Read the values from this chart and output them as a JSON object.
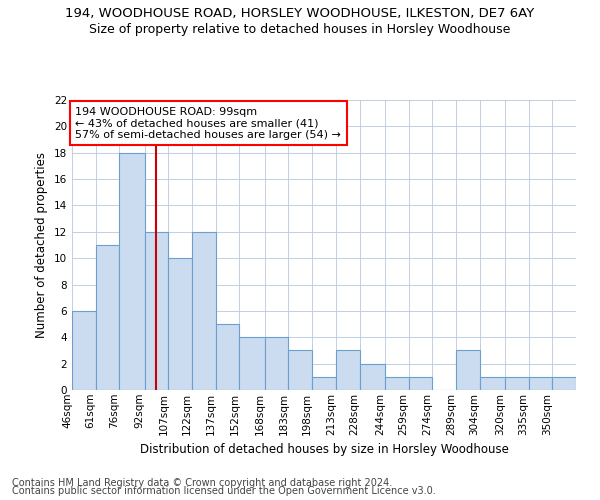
{
  "title": "194, WOODHOUSE ROAD, HORSLEY WOODHOUSE, ILKESTON, DE7 6AY",
  "subtitle": "Size of property relative to detached houses in Horsley Woodhouse",
  "xlabel": "Distribution of detached houses by size in Horsley Woodhouse",
  "ylabel": "Number of detached properties",
  "footer1": "Contains HM Land Registry data © Crown copyright and database right 2024.",
  "footer2": "Contains public sector information licensed under the Open Government Licence v3.0.",
  "annotation_title": "194 WOODHOUSE ROAD: 99sqm",
  "annotation_line1": "← 43% of detached houses are smaller (41)",
  "annotation_line2": "57% of semi-detached houses are larger (54) →",
  "bar_color": "#ccdcf0",
  "bar_edge_color": "#6a9fd0",
  "ref_line_color": "#cc0000",
  "ref_line_x": 99,
  "categories": [
    "46sqm",
    "61sqm",
    "76sqm",
    "92sqm",
    "107sqm",
    "122sqm",
    "137sqm",
    "152sqm",
    "168sqm",
    "183sqm",
    "198sqm",
    "213sqm",
    "228sqm",
    "244sqm",
    "259sqm",
    "274sqm",
    "289sqm",
    "304sqm",
    "320sqm",
    "335sqm",
    "350sqm"
  ],
  "bin_edges": [
    46,
    61,
    76,
    92,
    107,
    122,
    137,
    152,
    168,
    183,
    198,
    213,
    228,
    244,
    259,
    274,
    289,
    304,
    320,
    335,
    350,
    365
  ],
  "values": [
    6,
    11,
    18,
    12,
    10,
    12,
    5,
    4,
    4,
    3,
    1,
    3,
    2,
    1,
    1,
    0,
    3,
    1,
    1,
    1,
    1
  ],
  "ylim": [
    0,
    22
  ],
  "yticks": [
    0,
    2,
    4,
    6,
    8,
    10,
    12,
    14,
    16,
    18,
    20,
    22
  ],
  "background_color": "#ffffff",
  "grid_color": "#b8c8dc",
  "title_fontsize": 9.5,
  "subtitle_fontsize": 9,
  "axis_label_fontsize": 8.5,
  "tick_fontsize": 7.5,
  "footer_fontsize": 7,
  "annot_fontsize": 8
}
